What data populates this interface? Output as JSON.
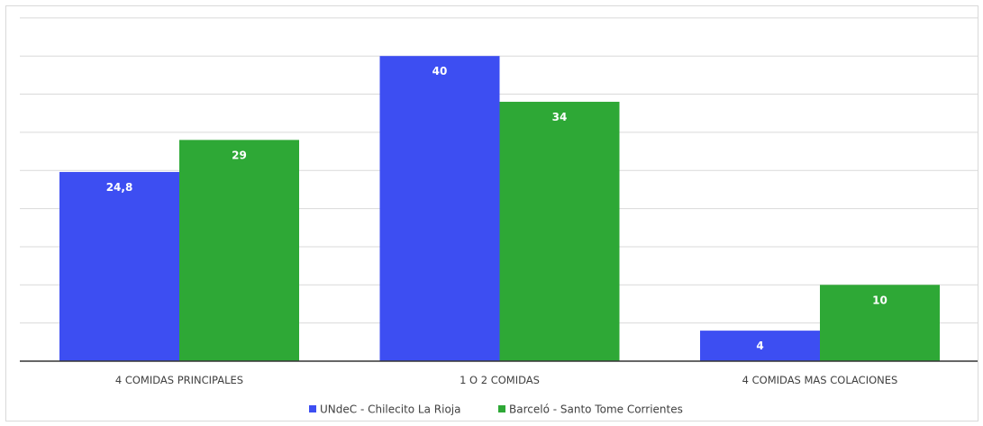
{
  "chart_data": {
    "type": "bar",
    "categories": [
      "4 COMIDAS PRINCIPALES",
      "1 O 2 COMIDAS",
      "4 COMIDAS MAS COLACIONES"
    ],
    "series": [
      {
        "name": "UNdeC - Chilecito La Rioja",
        "values": [
          24.8,
          40,
          4
        ],
        "labels": [
          "24,8",
          "40",
          "4"
        ],
        "color": "#3d4ef2"
      },
      {
        "name": "Barceló - Santo Tome Corrientes",
        "values": [
          29,
          34,
          10
        ],
        "labels": [
          "29",
          "34",
          "10"
        ],
        "color": "#2ea836"
      }
    ],
    "ylim": [
      0,
      45
    ],
    "ytick_step": 5,
    "grid": true,
    "legend_position": "bottom",
    "title": "",
    "xlabel": "",
    "ylabel": ""
  }
}
